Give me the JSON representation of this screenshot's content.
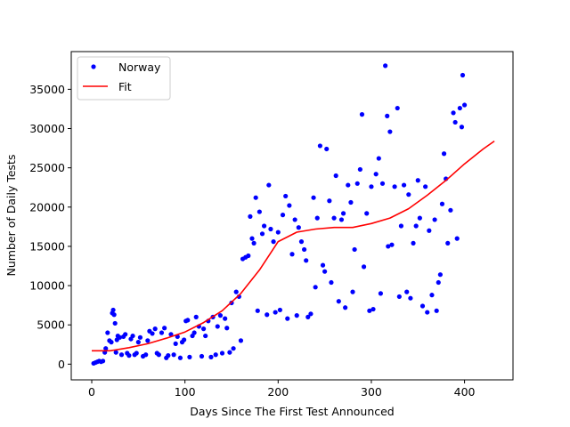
{
  "chart_data": {
    "type": "scatter",
    "title": "",
    "xlabel": "Days Since The First Test Announced",
    "ylabel": "Number of Daily Tests",
    "xlim": [
      -22,
      452
    ],
    "ylim": [
      -2000,
      39800
    ],
    "xticks": [
      0,
      100,
      200,
      300,
      400
    ],
    "xtick_labels": [
      "0",
      "100",
      "200",
      "300",
      "400"
    ],
    "yticks": [
      0,
      5000,
      10000,
      15000,
      20000,
      25000,
      30000,
      35000
    ],
    "ytick_labels": [
      "0",
      "5000",
      "10000",
      "15000",
      "20000",
      "25000",
      "30000",
      "35000"
    ],
    "grid": false,
    "legend": {
      "position": "top-left",
      "entries": [
        "Norway",
        "Fit"
      ]
    },
    "colors": {
      "Norway": "#0000ff",
      "Fit": "#ff0000"
    },
    "series": [
      {
        "name": "Norway",
        "kind": "scatter",
        "x": [
          2,
          4,
          6,
          8,
          10,
          12,
          14,
          15,
          17,
          19,
          21,
          22,
          23,
          24,
          25,
          26,
          27,
          28,
          30,
          32,
          34,
          36,
          38,
          40,
          42,
          44,
          46,
          48,
          50,
          52,
          55,
          58,
          60,
          62,
          65,
          68,
          70,
          72,
          75,
          78,
          80,
          82,
          85,
          88,
          90,
          92,
          95,
          97,
          99,
          101,
          103,
          105,
          108,
          110,
          112,
          115,
          118,
          120,
          122,
          125,
          128,
          130,
          133,
          135,
          138,
          140,
          143,
          145,
          148,
          150,
          152,
          155,
          158,
          160,
          162,
          165,
          168,
          170,
          172,
          174,
          176,
          178,
          180,
          183,
          185,
          188,
          190,
          192,
          195,
          197,
          200,
          202,
          205,
          208,
          210,
          212,
          215,
          218,
          220,
          222,
          225,
          228,
          230,
          232,
          235,
          238,
          240,
          242,
          245,
          248,
          250,
          252,
          255,
          257,
          260,
          262,
          265,
          268,
          270,
          272,
          275,
          278,
          280,
          282,
          285,
          288,
          290,
          292,
          295,
          298,
          300,
          302,
          305,
          308,
          310,
          312,
          315,
          317,
          318,
          320,
          322,
          325,
          328,
          330,
          332,
          335,
          338,
          340,
          342,
          345,
          348,
          350,
          352,
          355,
          358,
          360,
          362,
          365,
          368,
          370,
          372,
          374,
          376,
          378,
          380,
          382,
          385,
          388,
          390,
          392,
          395,
          397,
          398,
          400
        ],
        "y": [
          100,
          200,
          300,
          400,
          300,
          400,
          1500,
          2000,
          4000,
          3000,
          2800,
          6500,
          6900,
          6300,
          5200,
          1500,
          3100,
          3600,
          3400,
          1200,
          3500,
          3800,
          1400,
          1100,
          3200,
          3600,
          1200,
          1400,
          2800,
          3400,
          1000,
          1200,
          3000,
          4200,
          3900,
          4500,
          1400,
          1200,
          4000,
          4600,
          800,
          1100,
          3800,
          1200,
          2600,
          3500,
          800,
          2800,
          3100,
          5500,
          5600,
          900,
          3600,
          4000,
          6000,
          4800,
          1000,
          4500,
          3600,
          5500,
          900,
          6000,
          1200,
          4800,
          6200,
          1400,
          5800,
          4600,
          1500,
          7800,
          2000,
          9200,
          8600,
          3000,
          13400,
          13600,
          13800,
          18800,
          16000,
          15400,
          21200,
          6800,
          19400,
          16600,
          17600,
          6300,
          22800,
          17200,
          15600,
          6600,
          16800,
          6900,
          19000,
          21400,
          5800,
          20200,
          14000,
          18400,
          6200,
          17400,
          15600,
          14600,
          13200,
          6000,
          6400,
          21200,
          9800,
          18600,
          27800,
          12600,
          11800,
          27400,
          20800,
          10400,
          18600,
          24000,
          8000,
          18400,
          19200,
          7200,
          22800,
          20600,
          9200,
          14600,
          23000,
          24800,
          31800,
          12400,
          19200,
          6800,
          22600,
          7000,
          24200,
          26200,
          9000,
          23000,
          38000,
          31600,
          15000,
          29600,
          15200,
          22600,
          32600,
          8600,
          17600,
          22800,
          9200,
          21600,
          8400,
          15400,
          17600,
          23400,
          18600,
          7400,
          22600,
          6600,
          17000,
          8800,
          18400,
          6800,
          10400,
          11400,
          20400,
          26800,
          23600,
          15400,
          19600,
          32000,
          30800,
          16000,
          32600,
          30200,
          36800,
          33000
        ],
        "marker": "dot"
      },
      {
        "name": "Fit",
        "kind": "line",
        "x": [
          0,
          20,
          40,
          60,
          80,
          100,
          120,
          140,
          160,
          180,
          200,
          220,
          240,
          260,
          280,
          300,
          320,
          340,
          360,
          380,
          400,
          420,
          432
        ],
        "y": [
          1700,
          1700,
          2100,
          2600,
          3300,
          4100,
          5300,
          6800,
          9000,
          12000,
          15600,
          16800,
          17200,
          17400,
          17400,
          17900,
          18600,
          19800,
          21500,
          23400,
          25500,
          27400,
          28400
        ]
      }
    ]
  }
}
